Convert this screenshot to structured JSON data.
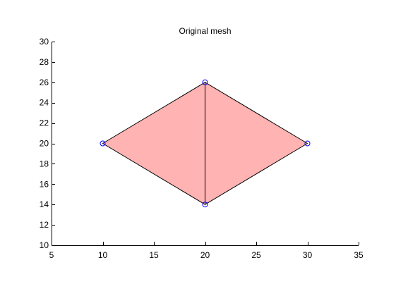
{
  "chart_data": {
    "type": "mesh",
    "title": "Original mesh",
    "xlabel": "",
    "ylabel": "",
    "xlim": [
      5,
      35
    ],
    "ylim": [
      10,
      30
    ],
    "x_ticks": [
      5,
      10,
      15,
      20,
      25,
      30,
      35
    ],
    "y_ticks": [
      10,
      12,
      14,
      16,
      18,
      20,
      22,
      24,
      26,
      28,
      30
    ],
    "grid": false,
    "nodes": [
      {
        "x": 10,
        "y": 20
      },
      {
        "x": 20,
        "y": 26
      },
      {
        "x": 30,
        "y": 20
      },
      {
        "x": 20,
        "y": 14
      }
    ],
    "elements": [
      [
        0,
        1,
        3
      ],
      [
        1,
        2,
        3
      ]
    ],
    "colors": {
      "face": "#ffb3b3",
      "edge": "#000000",
      "node_marker": "#0000ff",
      "axes": "#000000",
      "background": "#ffffff"
    }
  }
}
